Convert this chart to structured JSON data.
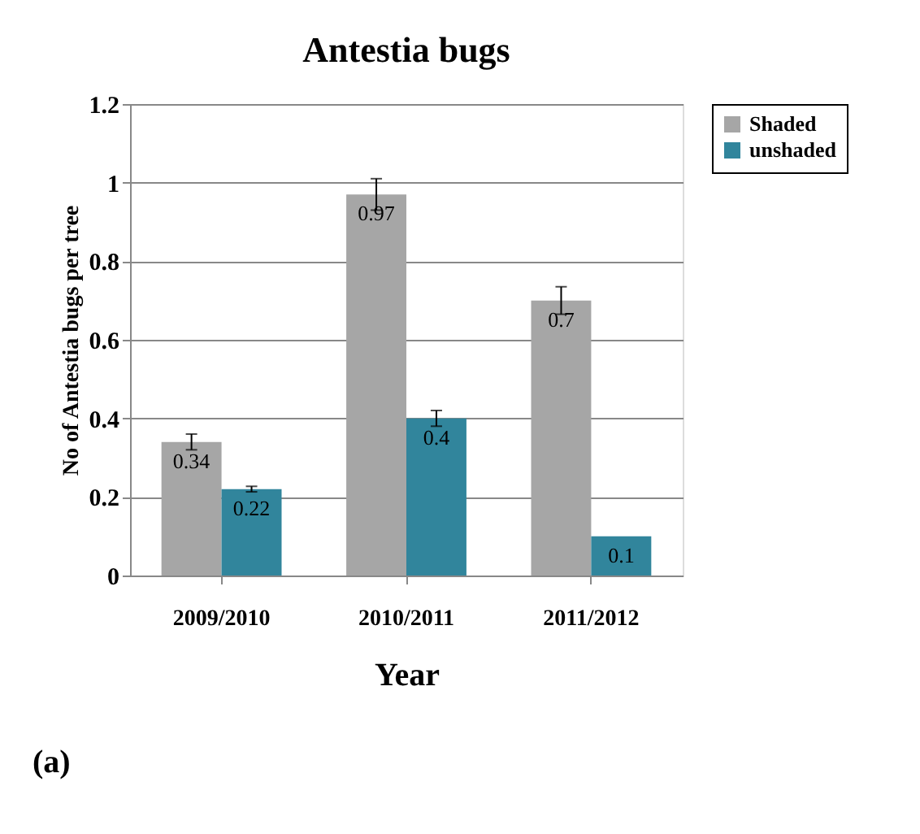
{
  "chart_data": {
    "type": "bar",
    "title": "Antestia bugs",
    "xlabel": "Year",
    "ylabel": "No of Antestia bugs per tree",
    "categories": [
      "2009/2010",
      "2010/2011",
      "2011/2012"
    ],
    "series": [
      {
        "name": "Shaded",
        "color": "#a6a6a6",
        "values": [
          0.34,
          0.97,
          0.7
        ],
        "errors": [
          0.02,
          0.04,
          0.035
        ]
      },
      {
        "name": "unshaded",
        "color": "#31859c",
        "values": [
          0.22,
          0.4,
          0.1
        ],
        "errors": [
          0.007,
          0.02,
          null
        ]
      }
    ],
    "ylim": [
      0,
      1.2
    ],
    "yticks": [
      0,
      0.2,
      0.4,
      0.6,
      0.8,
      1,
      1.2
    ],
    "grid": "y",
    "legend": "top right",
    "data_labels": true,
    "annotations": [
      "(a)"
    ]
  }
}
